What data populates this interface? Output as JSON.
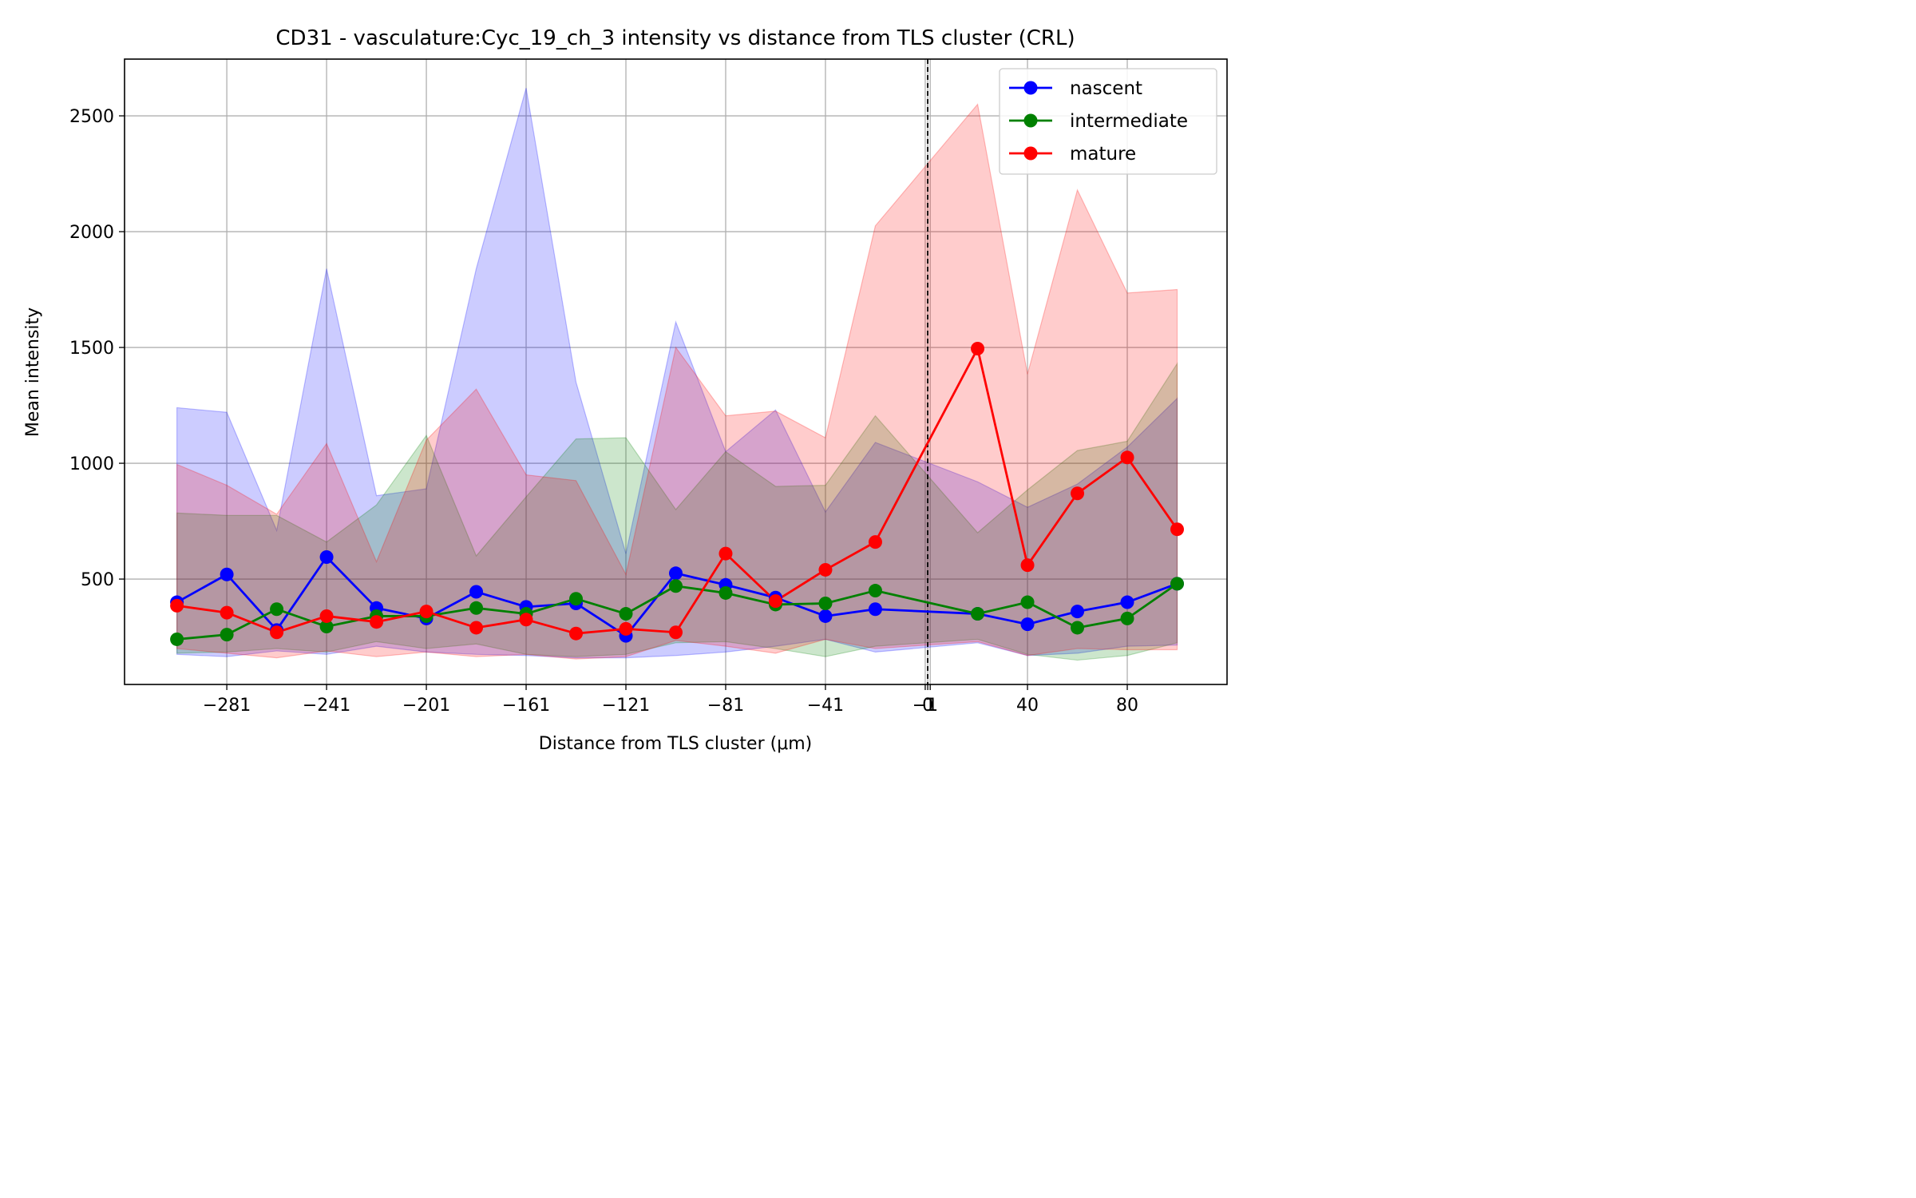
{
  "chart_data": {
    "type": "line",
    "title": "CD31 - vasculature:Cyc_19_ch_3 intensity vs distance from TLS cluster (CRL)",
    "xlabel": "Distance from TLS cluster (μm)",
    "ylabel": "Mean intensity",
    "xlim": [
      -322,
      120
    ],
    "ylim": [
      45,
      2745
    ],
    "grid": true,
    "legend": "top-right",
    "reference_line": {
      "x": 0,
      "style": "dashed",
      "color": "#000000"
    },
    "xticks": [
      {
        "value": -281,
        "label": "−281"
      },
      {
        "value": -241,
        "label": "−241"
      },
      {
        "value": -201,
        "label": "−201"
      },
      {
        "value": -161,
        "label": "−161"
      },
      {
        "value": -121,
        "label": "−121"
      },
      {
        "value": -81,
        "label": "−81"
      },
      {
        "value": -41,
        "label": "−41"
      },
      {
        "value": -1,
        "label": "−1"
      },
      {
        "value": 0,
        "label": "0"
      },
      {
        "value": 1,
        "label": "1"
      },
      {
        "value": 40,
        "label": "40"
      },
      {
        "value": 80,
        "label": "80"
      }
    ],
    "yticks": [
      500,
      1000,
      1500,
      2000,
      2500
    ],
    "series": [
      {
        "name": "nascent",
        "color": "#0000ff",
        "fill": "#0000ff",
        "x": [
          -301,
          -281,
          -261,
          -241,
          -221,
          -201,
          -181,
          -161,
          -141,
          -121,
          -101,
          -81,
          -61,
          -41,
          -21,
          20,
          40,
          60,
          80,
          100
        ],
        "y": [
          400,
          520,
          280,
          595,
          375,
          330,
          445,
          380,
          395,
          255,
          525,
          475,
          420,
          340,
          370,
          350,
          305,
          360,
          400,
          480
        ],
        "upper": [
          1240,
          1220,
          710,
          1840,
          860,
          890,
          1840,
          2620,
          1350,
          610,
          1610,
          1050,
          1230,
          790,
          1090,
          920,
          810,
          910,
          1070,
          1280
        ],
        "lower": [
          175,
          165,
          190,
          175,
          210,
          185,
          175,
          170,
          160,
          160,
          170,
          185,
          210,
          240,
          185,
          225,
          170,
          180,
          210,
          215
        ]
      },
      {
        "name": "intermediate",
        "color": "#008000",
        "fill": "#008000",
        "x": [
          -301,
          -281,
          -261,
          -241,
          -221,
          -201,
          -181,
          -161,
          -141,
          -121,
          -101,
          -81,
          -61,
          -41,
          -21,
          20,
          40,
          60,
          80,
          100
        ],
        "y": [
          240,
          260,
          370,
          295,
          340,
          340,
          375,
          350,
          415,
          350,
          470,
          440,
          390,
          395,
          450,
          350,
          400,
          290,
          330,
          480
        ],
        "upper": [
          785,
          775,
          775,
          660,
          820,
          1120,
          600,
          855,
          1105,
          1110,
          800,
          1050,
          900,
          905,
          1205,
          700,
          885,
          1055,
          1095,
          1430
        ],
        "lower": [
          180,
          185,
          200,
          185,
          230,
          200,
          220,
          175,
          165,
          175,
          225,
          230,
          200,
          165,
          210,
          240,
          175,
          150,
          170,
          225
        ]
      },
      {
        "name": "mature",
        "color": "#ff0000",
        "fill": "#ff0000",
        "x": [
          -301,
          -281,
          -261,
          -241,
          -221,
          -201,
          -181,
          -161,
          -141,
          -121,
          -101,
          -81,
          -61,
          -41,
          -21,
          20,
          40,
          60,
          80,
          100
        ],
        "y": [
          385,
          355,
          270,
          340,
          315,
          360,
          290,
          325,
          265,
          285,
          270,
          610,
          405,
          540,
          660,
          1495,
          560,
          870,
          1025,
          715
        ],
        "upper": [
          995,
          905,
          780,
          1085,
          575,
          1100,
          1320,
          950,
          925,
          520,
          1500,
          1205,
          1225,
          1110,
          2025,
          2550,
          1385,
          2180,
          1735,
          1750
        ],
        "lower": [
          200,
          180,
          160,
          190,
          165,
          185,
          165,
          175,
          155,
          165,
          235,
          210,
          180,
          240,
          200,
          230,
          170,
          200,
          195,
          195
        ]
      }
    ]
  }
}
